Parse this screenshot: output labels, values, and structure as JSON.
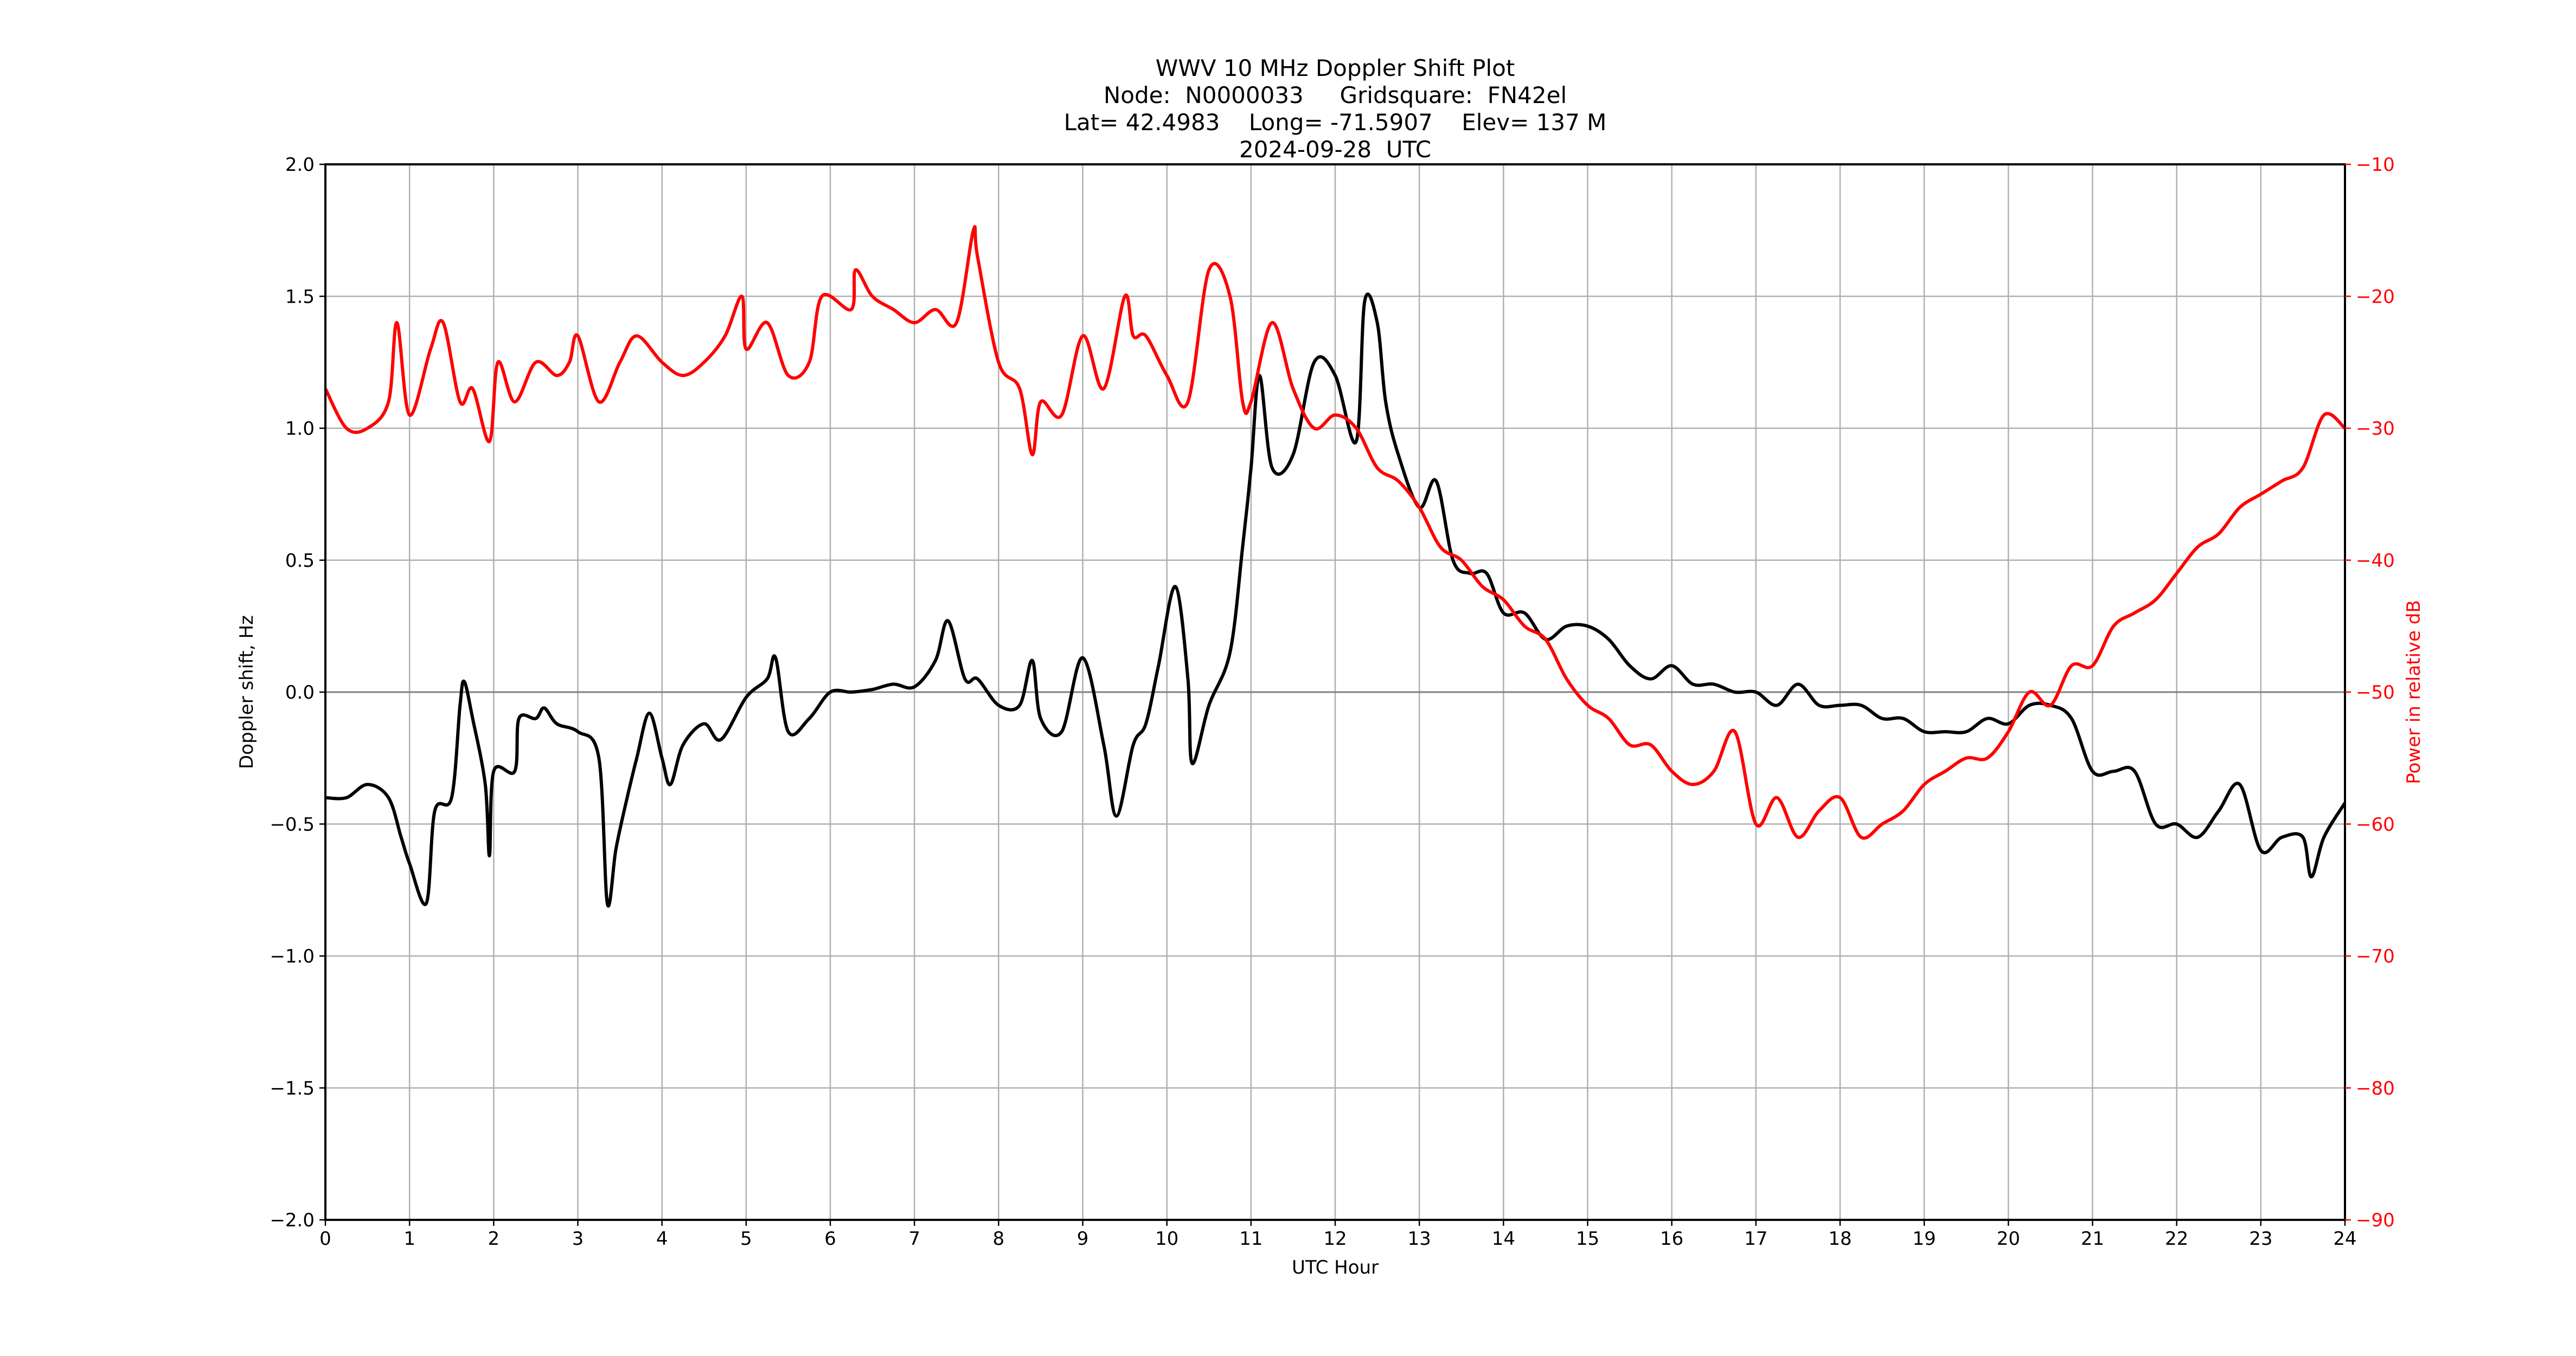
{
  "chart_data": {
    "type": "line",
    "title_lines": [
      "WWV 10 MHz Doppler Shift Plot",
      "Node:  N0000033     Gridsquare:  FN42el",
      "Lat= 42.4983    Long= -71.5907    Elev= 137 M",
      "2024-09-28  UTC"
    ],
    "xlabel": "UTC Hour",
    "ylabel": "Doppler shift, Hz",
    "y2label": "Power in relative dB",
    "xlim": [
      0,
      24
    ],
    "ylim": [
      -2.0,
      2.0
    ],
    "y2lim": [
      -90,
      -10
    ],
    "xticks": [
      0,
      1,
      2,
      3,
      4,
      5,
      6,
      7,
      8,
      9,
      10,
      11,
      12,
      13,
      14,
      15,
      16,
      17,
      18,
      19,
      20,
      21,
      22,
      23,
      24
    ],
    "yticks": [
      "−2.0",
      "−1.5",
      "−1.0",
      "−0.5",
      "0.0",
      "0.5",
      "1.0",
      "1.5",
      "2.0"
    ],
    "ytick_values": [
      -2.0,
      -1.5,
      -1.0,
      -0.5,
      0.0,
      0.5,
      1.0,
      1.5,
      2.0
    ],
    "y2ticks": [
      "−90",
      "−80",
      "−70",
      "−60",
      "−50",
      "−40",
      "−30",
      "−20",
      "−10"
    ],
    "y2tick_values": [
      -90,
      -80,
      -70,
      -60,
      -50,
      -40,
      -30,
      -20,
      -10
    ],
    "grid": true,
    "colors": {
      "doppler": "#000000",
      "power": "#ff0000",
      "grid": "#b0b0b0"
    },
    "series": [
      {
        "name": "Doppler shift (Hz)",
        "axis": "left",
        "x": [
          0,
          0.25,
          0.5,
          0.75,
          0.9,
          1.0,
          1.2,
          1.3,
          1.5,
          1.6,
          1.65,
          1.75,
          1.9,
          1.95,
          2.0,
          2.25,
          2.3,
          2.5,
          2.6,
          2.75,
          3.0,
          3.25,
          3.35,
          3.45,
          3.55,
          3.7,
          3.85,
          4.0,
          4.1,
          4.25,
          4.5,
          4.7,
          5.0,
          5.25,
          5.35,
          5.5,
          5.75,
          6.0,
          6.25,
          6.5,
          6.75,
          7.0,
          7.25,
          7.4,
          7.6,
          7.75,
          8.0,
          8.25,
          8.4,
          8.5,
          8.75,
          9.0,
          9.25,
          9.4,
          9.6,
          9.75,
          9.9,
          10.1,
          10.25,
          10.3,
          10.5,
          10.75,
          10.9,
          11.0,
          11.1,
          11.25,
          11.5,
          11.75,
          12.0,
          12.25,
          12.35,
          12.5,
          12.6,
          12.75,
          13.0,
          13.2,
          13.4,
          13.6,
          13.8,
          14.0,
          14.25,
          14.5,
          14.75,
          15.0,
          15.25,
          15.5,
          15.75,
          16.0,
          16.25,
          16.5,
          16.75,
          17.0,
          17.25,
          17.5,
          17.75,
          18.0,
          18.25,
          18.5,
          18.75,
          19.0,
          19.25,
          19.5,
          19.75,
          20.0,
          20.25,
          20.5,
          20.75,
          21.0,
          21.25,
          21.5,
          21.75,
          22.0,
          22.25,
          22.5,
          22.75,
          23.0,
          23.25,
          23.5,
          23.6,
          23.75,
          24.0
        ],
        "values": [
          -0.4,
          -0.4,
          -0.35,
          -0.4,
          -0.55,
          -0.65,
          -0.8,
          -0.45,
          -0.4,
          -0.05,
          0.04,
          -0.1,
          -0.35,
          -0.62,
          -0.3,
          -0.3,
          -0.1,
          -0.1,
          -0.06,
          -0.12,
          -0.15,
          -0.25,
          -0.8,
          -0.6,
          -0.45,
          -0.25,
          -0.08,
          -0.25,
          -0.35,
          -0.2,
          -0.12,
          -0.18,
          -0.02,
          0.05,
          0.13,
          -0.15,
          -0.1,
          0.0,
          0.0,
          0.01,
          0.03,
          0.02,
          0.12,
          0.27,
          0.05,
          0.05,
          -0.05,
          -0.05,
          0.12,
          -0.1,
          -0.15,
          0.13,
          -0.2,
          -0.47,
          -0.2,
          -0.12,
          0.1,
          0.4,
          0.05,
          -0.27,
          -0.05,
          0.15,
          0.55,
          0.85,
          1.2,
          0.85,
          0.9,
          1.25,
          1.2,
          0.95,
          1.48,
          1.4,
          1.1,
          0.9,
          0.7,
          0.8,
          0.5,
          0.45,
          0.45,
          0.3,
          0.3,
          0.2,
          0.25,
          0.25,
          0.2,
          0.1,
          0.05,
          0.1,
          0.03,
          0.03,
          0.0,
          0.0,
          -0.05,
          0.03,
          -0.05,
          -0.05,
          -0.05,
          -0.1,
          -0.1,
          -0.15,
          -0.15,
          -0.15,
          -0.1,
          -0.12,
          -0.05,
          -0.05,
          -0.1,
          -0.3,
          -0.3,
          -0.3,
          -0.5,
          -0.5,
          -0.55,
          -0.45,
          -0.35,
          -0.6,
          -0.55,
          -0.55,
          -0.7,
          -0.55,
          -0.42
        ]
      },
      {
        "name": "Power (relative dB)",
        "axis": "right",
        "x": [
          0,
          0.25,
          0.5,
          0.75,
          0.85,
          1.0,
          1.25,
          1.4,
          1.6,
          1.75,
          1.95,
          2.05,
          2.25,
          2.5,
          2.75,
          2.9,
          3.0,
          3.25,
          3.5,
          3.7,
          4.0,
          4.25,
          4.5,
          4.75,
          4.95,
          5.0,
          5.25,
          5.5,
          5.75,
          5.9,
          6.25,
          6.3,
          6.5,
          6.75,
          7.0,
          7.25,
          7.5,
          7.7,
          7.75,
          8.0,
          8.25,
          8.4,
          8.5,
          8.75,
          9.0,
          9.25,
          9.5,
          9.6,
          9.75,
          10.0,
          10.25,
          10.5,
          10.75,
          10.9,
          11.0,
          11.25,
          11.5,
          11.75,
          12.0,
          12.25,
          12.5,
          12.75,
          13.0,
          13.25,
          13.5,
          13.75,
          14.0,
          14.25,
          14.5,
          14.75,
          15.0,
          15.25,
          15.5,
          15.75,
          16.0,
          16.25,
          16.5,
          16.75,
          17.0,
          17.25,
          17.5,
          17.75,
          18.0,
          18.25,
          18.5,
          18.75,
          19.0,
          19.25,
          19.5,
          19.75,
          20.0,
          20.25,
          20.5,
          20.75,
          21.0,
          21.25,
          21.5,
          21.75,
          22.0,
          22.25,
          22.5,
          22.75,
          23.0,
          23.25,
          23.5,
          23.75,
          24.0
        ],
        "values": [
          -27,
          -30,
          -30,
          -28,
          -22,
          -29,
          -24,
          -22,
          -28,
          -27,
          -31,
          -25,
          -28,
          -25,
          -26,
          -25,
          -23,
          -28,
          -25,
          -23,
          -25,
          -26,
          -25,
          -23,
          -20,
          -24,
          -22,
          -26,
          -25,
          -20,
          -21,
          -18,
          -20,
          -21,
          -22,
          -21,
          -22,
          -15,
          -17,
          -25,
          -27,
          -32,
          -28,
          -29,
          -23,
          -27,
          -20,
          -23,
          -23,
          -26,
          -28,
          -18,
          -20,
          -28,
          -28,
          -22,
          -27,
          -30,
          -29,
          -30,
          -33,
          -34,
          -36,
          -39,
          -40,
          -42,
          -43,
          -45,
          -46,
          -49,
          -51,
          -52,
          -54,
          -54,
          -56,
          -57,
          -56,
          -53,
          -60,
          -58,
          -61,
          -59,
          -58,
          -61,
          -60,
          -59,
          -57,
          -56,
          -55,
          -55,
          -53,
          -50,
          -51,
          -48,
          -48,
          -45,
          -44,
          -43,
          -41,
          -39,
          -38,
          -36,
          -35,
          -34,
          -33,
          -29,
          -30
        ]
      }
    ]
  }
}
